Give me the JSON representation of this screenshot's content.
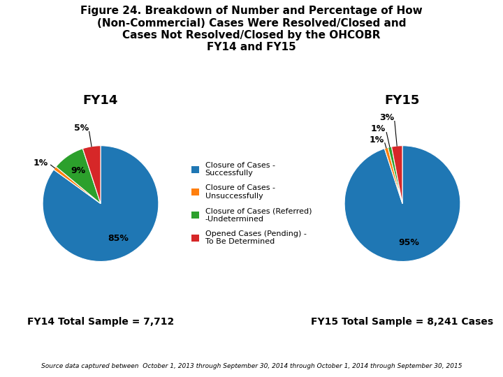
{
  "title": "Figure 24. Breakdown of Number and Percentage of How\n(Non-Commercial) Cases Were Resolved/Closed and\nCases Not Resolved/Closed by the OHCOBR\nFY14 and FY15",
  "legend": "center",
  "annotations": [
    "Source data captured between  October 1, 2013 through September 30, 2014 through October 1, 2014 through September 30, 2015"
  ],
  "chart_data": [
    {
      "type": "pie",
      "title": "FY14",
      "categories": [
        "Closure of Cases -\nSuccessfully",
        "Closure of Cases -\nUnsuccessfully",
        "Closure of Cases (Referred)\n-Undetermined",
        "Opened Cases (Pending) -\nTo Be Determined"
      ],
      "values": [
        85,
        1,
        9,
        5
      ],
      "value_labels": [
        "85%",
        "1%",
        "9%",
        "5%"
      ],
      "data_labels": true,
      "annotations": [
        "FY14 Total Sample = 7,712"
      ]
    },
    {
      "type": "pie",
      "title": "FY15",
      "categories": [
        "Closure of Cases -\nSuccessfully",
        "Closure of Cases -\nUnsuccessfully",
        "Closure of Cases (Referred)\n-Undetermined",
        "Opened Cases (Pending) -\nTo Be Determined"
      ],
      "values": [
        95,
        1,
        1,
        3
      ],
      "value_labels": [
        "95%",
        "1%",
        "1%",
        "3%"
      ],
      "data_labels": true,
      "annotations": [
        "FY15 Total Sample = 8,241 Cases"
      ]
    }
  ]
}
